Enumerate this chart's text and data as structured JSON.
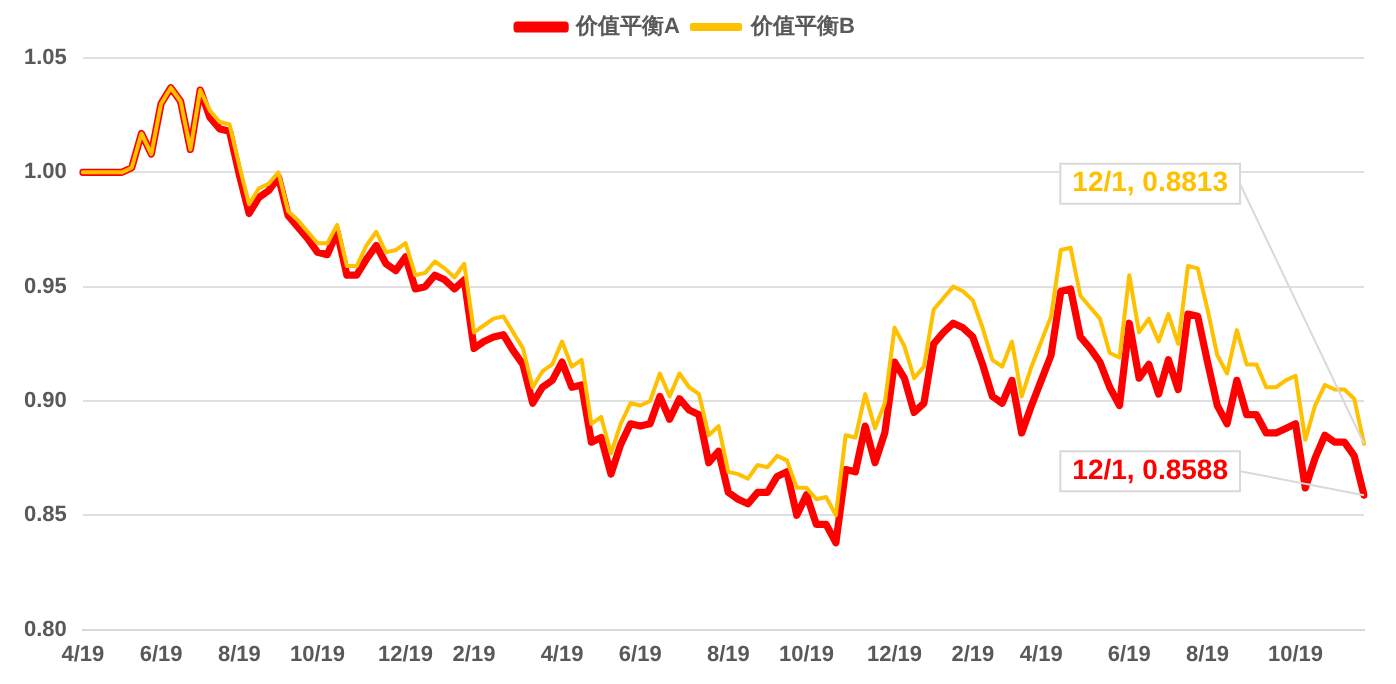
{
  "chart_data": {
    "type": "line",
    "categories": [
      "4/19",
      null,
      null,
      null,
      null,
      null,
      null,
      null,
      "6/19",
      null,
      null,
      null,
      null,
      null,
      null,
      null,
      "8/19",
      null,
      null,
      null,
      null,
      null,
      null,
      null,
      "10/19",
      null,
      null,
      null,
      null,
      null,
      null,
      null,
      null,
      "12/19",
      null,
      null,
      null,
      null,
      null,
      null,
      "2/19",
      null,
      null,
      null,
      null,
      null,
      null,
      null,
      null,
      "4/19",
      null,
      null,
      null,
      null,
      null,
      null,
      null,
      "6/19",
      null,
      null,
      null,
      null,
      null,
      null,
      null,
      null,
      "8/19",
      null,
      null,
      null,
      null,
      null,
      null,
      null,
      "10/19",
      null,
      null,
      null,
      null,
      null,
      null,
      null,
      null,
      "12/19",
      null,
      null,
      null,
      null,
      null,
      null,
      null,
      "2/19",
      null,
      null,
      null,
      null,
      null,
      null,
      "4/19",
      null,
      null,
      null,
      null,
      null,
      null,
      null,
      null,
      "6/19",
      null,
      null,
      null,
      null,
      null,
      null,
      null,
      "8/19",
      null,
      null,
      null,
      null,
      null,
      null,
      null,
      null,
      "10/19",
      null,
      null,
      null,
      null,
      null,
      null,
      null
    ],
    "series": [
      {
        "name": "价值平衡A",
        "color": "#ff0000",
        "values": [
          1.0,
          1.0,
          1.0,
          1.0,
          1.0,
          1.002,
          1.017,
          1.008,
          1.03,
          1.037,
          1.031,
          1.01,
          1.036,
          1.024,
          1.019,
          1.018,
          0.999,
          0.982,
          0.989,
          0.992,
          0.998,
          0.981,
          0.976,
          0.971,
          0.965,
          0.964,
          0.974,
          0.955,
          0.955,
          0.962,
          0.968,
          0.96,
          0.957,
          0.963,
          0.949,
          0.95,
          0.955,
          0.953,
          0.949,
          0.953,
          0.923,
          0.926,
          0.928,
          0.929,
          0.922,
          0.916,
          0.899,
          0.906,
          0.909,
          0.917,
          0.906,
          0.907,
          0.882,
          0.884,
          0.868,
          0.881,
          0.89,
          0.889,
          0.89,
          0.902,
          0.892,
          0.901,
          0.896,
          0.894,
          0.873,
          0.878,
          0.86,
          0.857,
          0.855,
          0.86,
          0.86,
          0.867,
          0.869,
          0.85,
          0.859,
          0.846,
          0.846,
          0.838,
          0.87,
          0.869,
          0.889,
          0.873,
          0.886,
          0.917,
          0.91,
          0.895,
          0.899,
          0.925,
          0.93,
          0.934,
          0.932,
          0.928,
          0.916,
          0.902,
          0.899,
          0.909,
          0.886,
          0.898,
          0.909,
          0.92,
          0.948,
          0.949,
          0.928,
          0.923,
          0.917,
          0.906,
          0.898,
          0.934,
          0.91,
          0.916,
          0.903,
          0.918,
          0.905,
          0.938,
          0.937,
          0.917,
          0.898,
          0.89,
          0.909,
          0.894,
          0.894,
          0.886,
          0.886,
          0.888,
          0.89,
          0.862,
          0.875,
          0.885,
          0.882,
          0.882,
          0.876,
          0.8588
        ],
        "value_labels": [
          null,
          null,
          null,
          null,
          null,
          null,
          null,
          null,
          null,
          null,
          null,
          null,
          null,
          null,
          null,
          null,
          null,
          null,
          null,
          null,
          null,
          null,
          null,
          null,
          null,
          null,
          null,
          null,
          null,
          null,
          null,
          null,
          null,
          null,
          null,
          null,
          null,
          null,
          null,
          null,
          null,
          null,
          null,
          null,
          null,
          null,
          null,
          null,
          null,
          null,
          null,
          null,
          null,
          null,
          null,
          null,
          null,
          null,
          null,
          null,
          null,
          null,
          null,
          null,
          null,
          null,
          null,
          null,
          null,
          null,
          null,
          null,
          null,
          null,
          null,
          null,
          null,
          null,
          null,
          null,
          null,
          null,
          null,
          null,
          null,
          null,
          null,
          null,
          null,
          null,
          null,
          null,
          null,
          null,
          null,
          null,
          null,
          null,
          null,
          null,
          null,
          null,
          null,
          null,
          null,
          null,
          null,
          null,
          null,
          null,
          null,
          null,
          null,
          null,
          null,
          null,
          null,
          null,
          null,
          null,
          null,
          null,
          null,
          null,
          null,
          null,
          null,
          null,
          null,
          null,
          null,
          "12/1, 0.8588"
        ]
      },
      {
        "name": "价值平衡B",
        "color": "#ffc000",
        "values": [
          1.0,
          1.0,
          1.0,
          1.0,
          1.0,
          1.002,
          1.017,
          1.008,
          1.03,
          1.037,
          1.031,
          1.01,
          1.036,
          1.027,
          1.022,
          1.021,
          1.003,
          0.986,
          0.993,
          0.995,
          1.0,
          0.983,
          0.979,
          0.974,
          0.969,
          0.969,
          0.977,
          0.959,
          0.959,
          0.968,
          0.974,
          0.965,
          0.966,
          0.969,
          0.955,
          0.956,
          0.961,
          0.958,
          0.954,
          0.96,
          0.93,
          0.933,
          0.936,
          0.937,
          0.93,
          0.923,
          0.906,
          0.913,
          0.916,
          0.926,
          0.915,
          0.918,
          0.89,
          0.893,
          0.877,
          0.89,
          0.899,
          0.898,
          0.9,
          0.912,
          0.902,
          0.912,
          0.906,
          0.903,
          0.885,
          0.889,
          0.869,
          0.868,
          0.866,
          0.872,
          0.871,
          0.876,
          0.874,
          0.862,
          0.862,
          0.857,
          0.858,
          0.85,
          0.885,
          0.884,
          0.903,
          0.888,
          0.899,
          0.932,
          0.924,
          0.91,
          0.915,
          0.94,
          0.945,
          0.95,
          0.948,
          0.944,
          0.932,
          0.918,
          0.915,
          0.926,
          0.902,
          0.915,
          0.926,
          0.937,
          0.966,
          0.967,
          0.946,
          0.941,
          0.936,
          0.921,
          0.919,
          0.955,
          0.93,
          0.936,
          0.926,
          0.938,
          0.925,
          0.959,
          0.958,
          0.94,
          0.92,
          0.912,
          0.931,
          0.916,
          0.916,
          0.906,
          0.906,
          0.909,
          0.911,
          0.883,
          0.898,
          0.907,
          0.905,
          0.905,
          0.901,
          0.8813
        ],
        "value_labels": [
          null,
          null,
          null,
          null,
          null,
          null,
          null,
          null,
          null,
          null,
          null,
          null,
          null,
          null,
          null,
          null,
          null,
          null,
          null,
          null,
          null,
          null,
          null,
          null,
          null,
          null,
          null,
          null,
          null,
          null,
          null,
          null,
          null,
          null,
          null,
          null,
          null,
          null,
          null,
          null,
          null,
          null,
          null,
          null,
          null,
          null,
          null,
          null,
          null,
          null,
          null,
          null,
          null,
          null,
          null,
          null,
          null,
          null,
          null,
          null,
          null,
          null,
          null,
          null,
          null,
          null,
          null,
          null,
          null,
          null,
          null,
          null,
          null,
          null,
          null,
          null,
          null,
          null,
          null,
          null,
          null,
          null,
          null,
          null,
          null,
          null,
          null,
          null,
          null,
          null,
          null,
          null,
          null,
          null,
          null,
          null,
          null,
          null,
          null,
          null,
          null,
          null,
          null,
          null,
          null,
          null,
          null,
          null,
          null,
          null,
          null,
          null,
          null,
          null,
          null,
          null,
          null,
          null,
          null,
          null,
          null,
          null,
          null,
          null,
          null,
          null,
          null,
          null,
          null,
          null,
          null,
          "12/1, 0.8813"
        ]
      }
    ],
    "ylim": [
      0.8,
      1.05
    ],
    "yticks": [
      {
        "value": 0.8,
        "label": "0.80"
      },
      0.85,
      {
        "value": 0.9,
        "label": "0.90"
      },
      0.95,
      {
        "value": 1.0,
        "label": "1.00"
      },
      1.05
    ],
    "grid": "y",
    "legend": "top",
    "marker": "none",
    "line_style": "solid"
  }
}
